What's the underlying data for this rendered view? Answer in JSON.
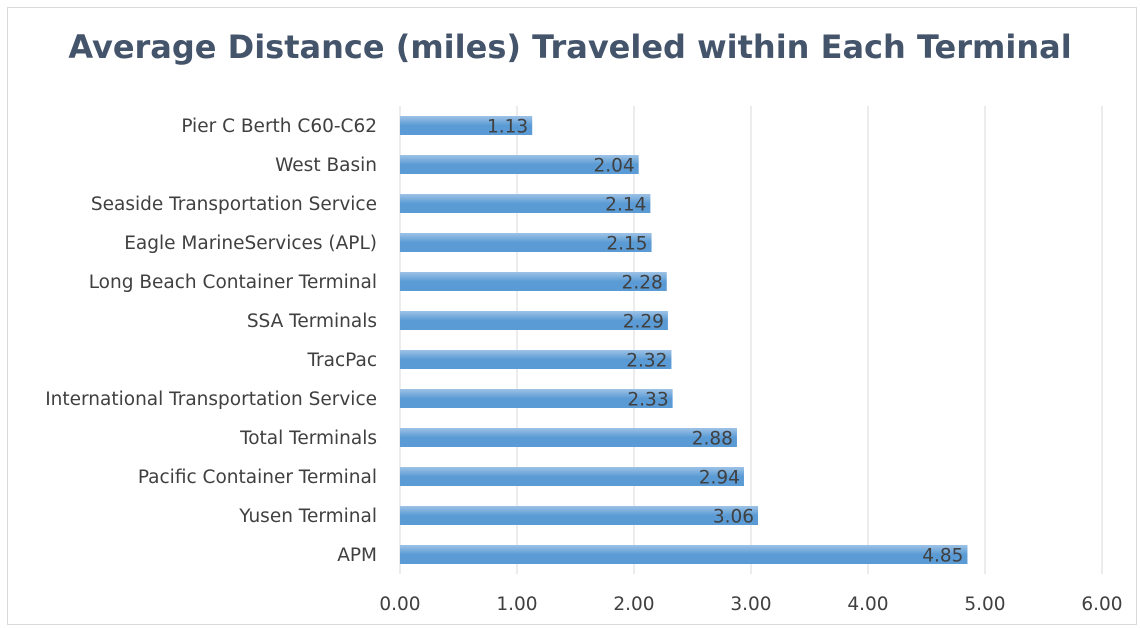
{
  "chart_data": {
    "type": "bar",
    "orientation": "horizontal",
    "title": "Average Distance (miles) Traveled within Each Terminal",
    "categories": [
      "Pier C Berth C60-C62",
      "West Basin",
      "Seaside Transportation Service",
      "Eagle MarineServices (APL)",
      "Long Beach Container Terminal",
      "SSA Terminals",
      "TracPac",
      "International Transportation Service",
      "Total Terminals",
      "Pacific Container Terminal",
      "Yusen Terminal",
      "APM"
    ],
    "values": [
      1.13,
      2.04,
      2.14,
      2.15,
      2.28,
      2.29,
      2.32,
      2.33,
      2.88,
      2.94,
      3.06,
      4.85
    ],
    "data_labels": [
      "1.13",
      "2.04",
      "2.14",
      "2.15",
      "2.28",
      "2.29",
      "2.32",
      "2.33",
      "2.88",
      "2.94",
      "3.06",
      "4.85"
    ],
    "x_ticks": [
      "0.00",
      "1.00",
      "2.00",
      "3.00",
      "4.00",
      "5.00",
      "6.00"
    ],
    "xlim": [
      0,
      6
    ],
    "grid": "vertical",
    "legend": "none",
    "bar_color": "#5b9bd5",
    "bar_color_light": "#9dc3e6"
  }
}
